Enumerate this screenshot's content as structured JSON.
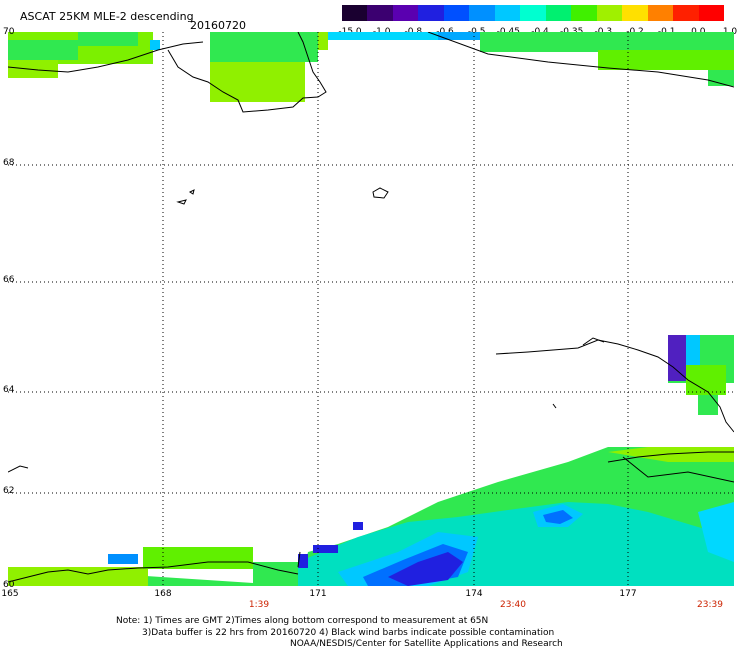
{
  "header": {
    "title": "ASCAT 25KM MLE-2 descending",
    "date": "20160720"
  },
  "color_scale": {
    "labels": [
      "-15.0",
      "-1.0",
      "-0.8",
      "-0.6",
      "-0.5",
      "-0.45",
      "-0.4",
      "-0.35",
      "-0.3",
      "-0.2",
      "-0.1",
      "0.0",
      "1.0"
    ],
    "colors": [
      "#1a0030",
      "#3b0070",
      "#5a00b0",
      "#2020e0",
      "#0050ff",
      "#0090ff",
      "#00c8ff",
      "#00ffd0",
      "#00f070",
      "#40f000",
      "#a0f000",
      "#ffe000",
      "#ff8000",
      "#ff2000",
      "#ff0000"
    ]
  },
  "map": {
    "lat_labels": [
      "70",
      "68",
      "66",
      "64",
      "62",
      "60"
    ],
    "lon_labels": [
      "165",
      "168",
      "171",
      "174",
      "177"
    ],
    "times": [
      "1:39",
      "23:40",
      "23:39"
    ]
  },
  "notes": {
    "line1": "Note: 1) Times are GMT 2)Times along bottom correspond to measurement at 65N",
    "line2": "3)Data buffer is 22 hrs from 20160720 4) Black wind barbs indicate possible contamination",
    "line3": "NOAA/NESDIS/Center for Satellite Applications and Research"
  }
}
